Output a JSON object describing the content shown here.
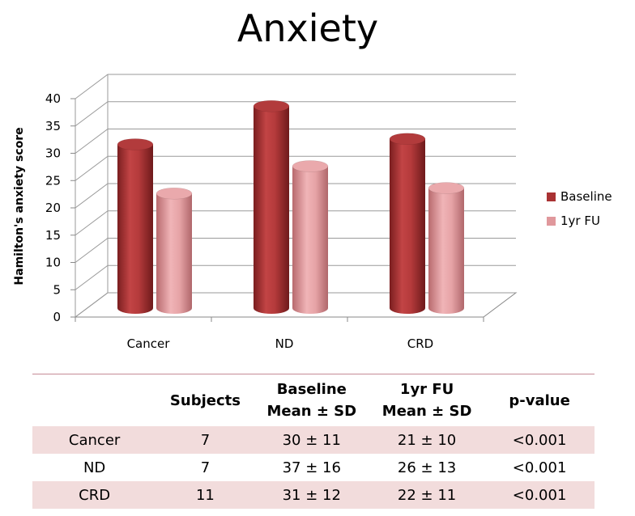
{
  "chart_data": {
    "type": "bar",
    "title": "Anxiety",
    "ylabel": "Hamilton's anxiety score",
    "xlabel": "",
    "categories": [
      "Cancer",
      "ND",
      "CRD"
    ],
    "series": [
      {
        "name": "Baseline",
        "values": [
          30,
          37,
          31
        ],
        "color": "#a93233"
      },
      {
        "name": "1yr FU",
        "values": [
          21,
          26,
          22
        ],
        "color": "#e0989c"
      }
    ],
    "ylim": [
      0,
      40
    ],
    "yticks": [
      "0",
      "5",
      "10",
      "15",
      "20",
      "25",
      "30",
      "35",
      "40"
    ],
    "grid": true,
    "legend": "right",
    "bar_style": "3d-cylinder"
  },
  "table": {
    "headers": [
      [
        "",
        ""
      ],
      [
        "Subjects",
        ""
      ],
      [
        "Baseline",
        "Mean ± SD"
      ],
      [
        "1yr FU",
        "Mean ± SD"
      ],
      [
        "p-value",
        ""
      ]
    ],
    "rows": [
      [
        "Cancer",
        "7",
        "30 ± 11",
        "21 ± 10",
        "<0.001"
      ],
      [
        "ND",
        "7",
        "37 ± 16",
        "26 ± 13",
        "<0.001"
      ],
      [
        "CRD",
        "11",
        "31 ± 12",
        "22 ± 11",
        "<0.001"
      ]
    ]
  }
}
